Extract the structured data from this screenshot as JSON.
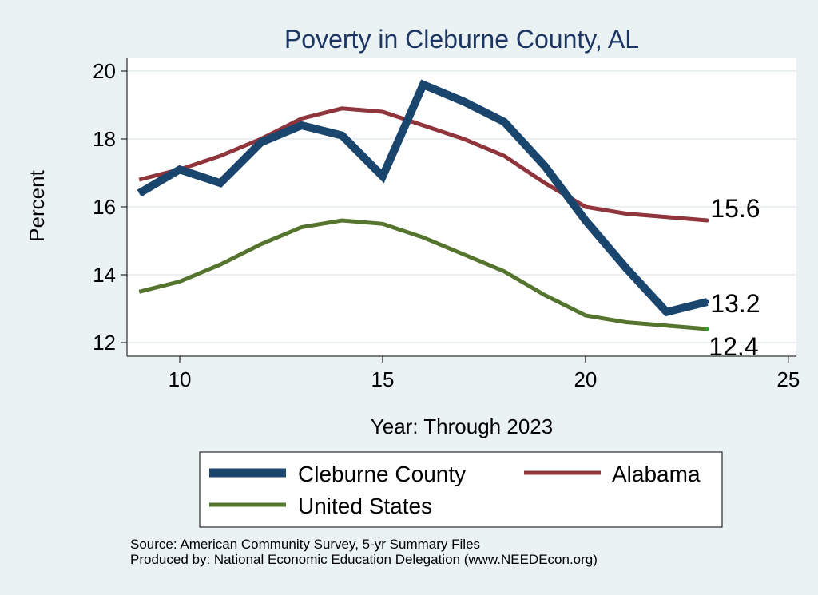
{
  "chart_data": {
    "type": "line",
    "title": "Poverty in Cleburne County, AL",
    "xlabel": "Year: Through 2023",
    "ylabel": "Percent",
    "xlim": [
      8.7,
      25.2
    ],
    "ylim": [
      11.6,
      20.4
    ],
    "xticks": [
      10,
      15,
      20,
      25
    ],
    "yticks": [
      12,
      14,
      16,
      18,
      20
    ],
    "x": [
      9,
      10,
      11,
      12,
      13,
      14,
      15,
      16,
      17,
      18,
      19,
      20,
      21,
      22,
      23
    ],
    "series": [
      {
        "name": "Cleburne County",
        "color": "#1a466e",
        "values": [
          16.4,
          17.1,
          16.7,
          17.9,
          18.4,
          18.1,
          16.9,
          19.6,
          19.1,
          18.5,
          17.2,
          15.6,
          14.2,
          12.9,
          13.2
        ],
        "end_label": "13.2"
      },
      {
        "name": "Alabama",
        "color": "#90353b",
        "values": [
          16.8,
          17.1,
          17.5,
          18.0,
          18.6,
          18.9,
          18.8,
          18.4,
          18.0,
          17.5,
          16.7,
          16.0,
          15.8,
          15.7,
          15.6
        ],
        "end_label": "15.6"
      },
      {
        "name": "United States",
        "color": "#55752f",
        "values": [
          13.5,
          13.8,
          14.3,
          14.9,
          15.4,
          15.6,
          15.5,
          15.1,
          14.6,
          14.1,
          13.4,
          12.8,
          12.6,
          12.5,
          12.4
        ],
        "end_label": "12.4"
      }
    ],
    "legend": [
      "Cleburne County",
      "Alabama",
      "United States"
    ],
    "grid": true
  },
  "source_line": "Source: American Community Survey, 5-yr Summary Files",
  "produced_line": "Produced by: National Economic Education Delegation (www.NEEDEcon.org)"
}
